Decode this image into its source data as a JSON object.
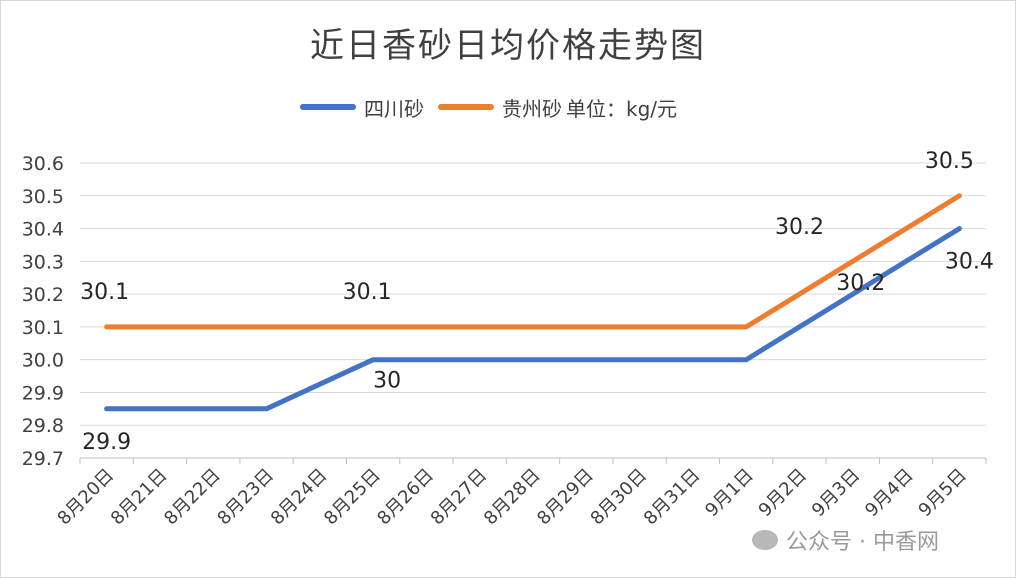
{
  "chart_data": {
    "type": "line",
    "title": "近日香砂日均价格走势图",
    "categories": [
      "8月20日",
      "8月21日",
      "8月22日",
      "8月23日",
      "8月24日",
      "8月25日",
      "8月26日",
      "8月27日",
      "8月28日",
      "8月29日",
      "8月30日",
      "8月31日",
      "9月1日",
      "9月2日",
      "9月3日",
      "9月4日",
      "9月5日"
    ],
    "series": [
      {
        "name": "四川砂",
        "color": "#4472c4",
        "values": [
          29.85,
          29.85,
          29.85,
          29.85,
          29.925,
          30.0,
          30.0,
          30.0,
          30.0,
          30.0,
          30.0,
          30.0,
          30.0,
          30.1,
          30.2,
          30.3,
          30.4
        ]
      },
      {
        "name": "贵州砂",
        "color": "#ed7d31",
        "values": [
          30.1,
          30.1,
          30.1,
          30.1,
          30.1,
          30.1,
          30.1,
          30.1,
          30.1,
          30.1,
          30.1,
          30.1,
          30.1,
          30.2,
          30.3,
          30.4,
          30.5
        ]
      }
    ],
    "legend_note": "单位：kg/元",
    "ylim": [
      29.7,
      30.6
    ],
    "yticks": [
      "29.7",
      "29.8",
      "29.9",
      "30.0",
      "30.1",
      "30.2",
      "30.3",
      "30.4",
      "30.5",
      "30.6"
    ],
    "grid": true,
    "legend_position": "top",
    "data_labels": [
      {
        "series": 0,
        "index": 0,
        "text": "29.9"
      },
      {
        "series": 0,
        "index": 5,
        "text": "30"
      },
      {
        "series": 0,
        "index": 14,
        "text": "30.2"
      },
      {
        "series": 0,
        "index": 16,
        "text": "30.4"
      },
      {
        "series": 1,
        "index": 0,
        "text": "30.1"
      },
      {
        "series": 1,
        "index": 5,
        "text": "30.1"
      },
      {
        "series": 1,
        "index": 13,
        "text": "30.2"
      },
      {
        "series": 1,
        "index": 16,
        "text": "30.5"
      }
    ]
  },
  "watermark": {
    "text": "公众号 · 中香网"
  }
}
